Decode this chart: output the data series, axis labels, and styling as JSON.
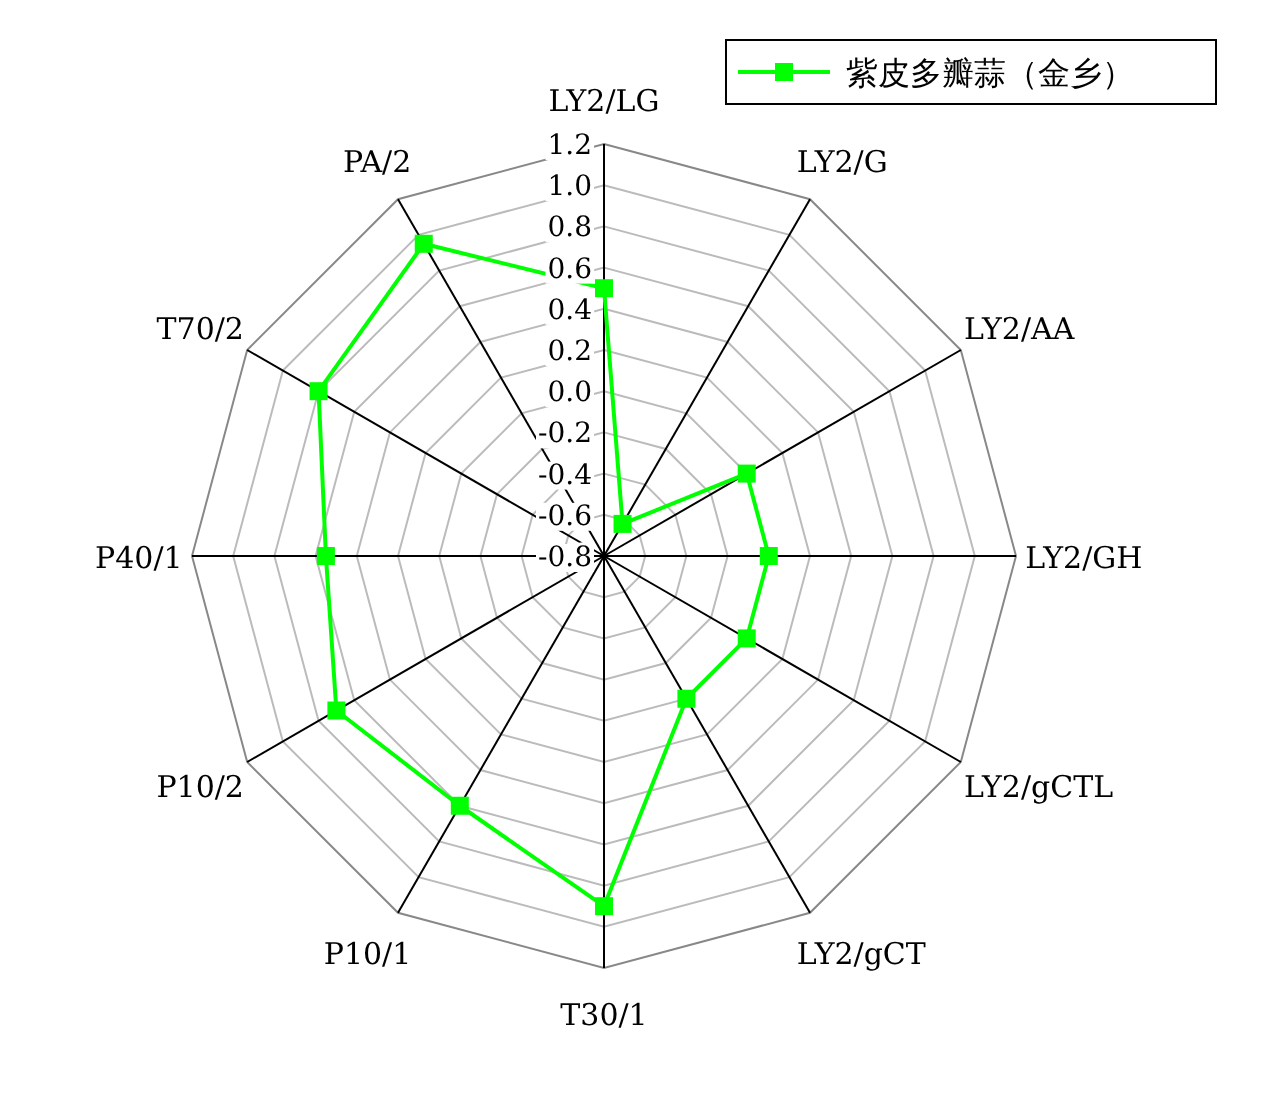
{
  "chart_data": {
    "type": "radar",
    "categories": [
      "LY2/LG",
      "LY2/G",
      "LY2/AA",
      "LY2/GH",
      "LY2/gCTL",
      "LY2/gCT",
      "T30/1",
      "P10/1",
      "P10/2",
      "P40/1",
      "T70/2",
      "PA/2"
    ],
    "series": [
      {
        "name": "紫皮多瓣蒜（金乡）",
        "color": "#00ff00",
        "values": [
          0.5,
          -0.62,
          0.0,
          0.0,
          0.0,
          0.0,
          0.9,
          0.6,
          0.7,
          0.55,
          0.8,
          0.95
        ]
      }
    ],
    "ylim": [
      -0.8,
      1.2
    ],
    "yticks": [
      -0.8,
      -0.6,
      -0.4,
      -0.2,
      {
        "value": 0,
        "label": "0.0"
      },
      0.2,
      0.4,
      0.6,
      0.8,
      {
        "value": 1,
        "label": "1.0"
      },
      1.2
    ],
    "grid": true,
    "legend": "top right",
    "marker": "square",
    "line_style": "solid"
  }
}
